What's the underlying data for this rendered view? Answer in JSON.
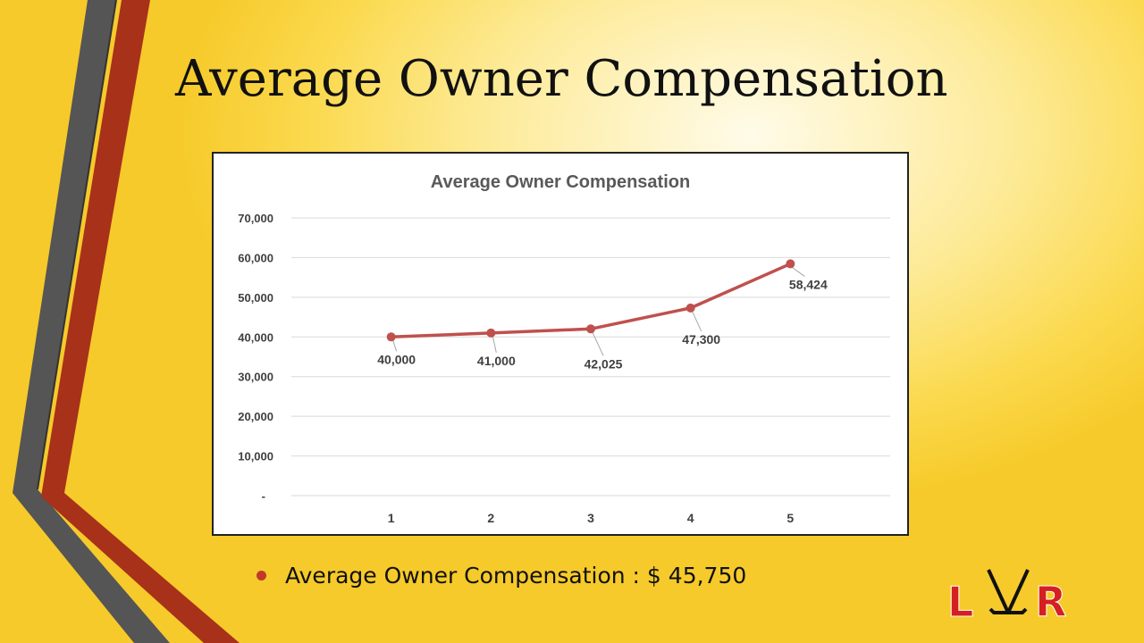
{
  "slide": {
    "title": "Average Owner Compensation",
    "bullet": "Average Owner Compensation : $ 45,750",
    "logo_text": "LVR"
  },
  "colors": {
    "background": "#fbd94d",
    "stripe_gray": "#555555",
    "stripe_red": "#a8311a",
    "series_line": "#c0504d",
    "bullet": "#c0392b",
    "logo_red": "#d42020"
  },
  "chart_data": {
    "type": "line",
    "title": "Average Owner Compensation",
    "categories": [
      "1",
      "2",
      "3",
      "4",
      "5"
    ],
    "series": [
      {
        "values": [
          40000,
          41000,
          42025,
          47300,
          58424
        ]
      }
    ],
    "data_labels": [
      "40,000",
      "41,000",
      "42,025",
      "47,300",
      "58,424"
    ],
    "y_ticks": [
      "-",
      "10,000",
      "20,000",
      "30,000",
      "40,000",
      "50,000",
      "60,000",
      "70,000"
    ],
    "ylim": [
      0,
      70000
    ],
    "grid": true,
    "legend": "none"
  }
}
